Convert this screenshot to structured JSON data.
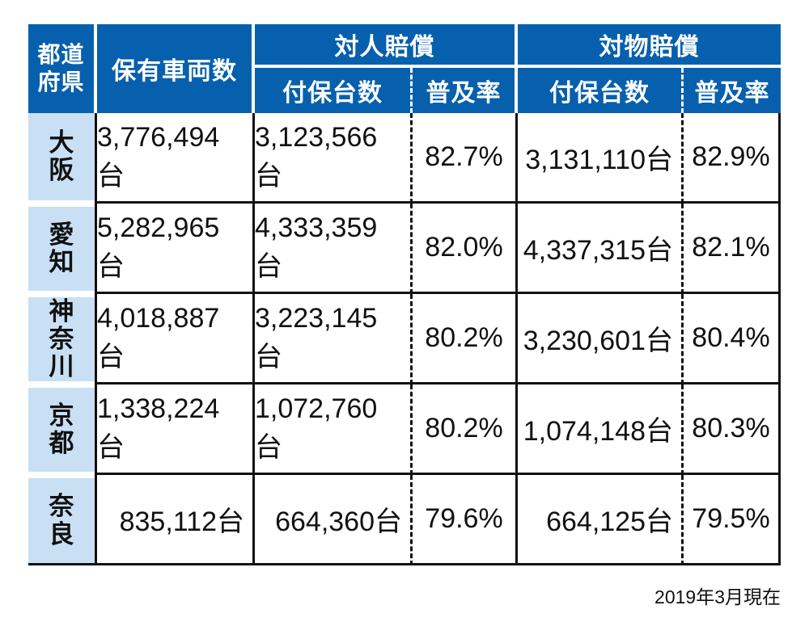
{
  "colors": {
    "header_blue": "#0660AD",
    "light_blue": "#C9E0F4"
  },
  "header": {
    "prefecture_lines": [
      "都道",
      "府県"
    ],
    "vehicles_owned": "保有車両数",
    "bodily_injury": "対人賠償",
    "property_damage": "対物賠償",
    "insured_units_bi": "付保台数",
    "penetration_rate_bi": "普及率",
    "insured_units_pd": "付保台数",
    "penetration_rate_pd": "普及率"
  },
  "rows": [
    {
      "pref": "大阪",
      "owned": "3,776,494台",
      "bi_insured": "3,123,566台",
      "bi_rate": "82.7%",
      "pd_insured": "3,131,110台",
      "pd_rate": "82.9%"
    },
    {
      "pref": "愛知",
      "owned": "5,282,965台",
      "bi_insured": "4,333,359台",
      "bi_rate": "82.0%",
      "pd_insured": "4,337,315台",
      "pd_rate": "82.1%"
    },
    {
      "pref": "神奈川",
      "owned": "4,018,887台",
      "bi_insured": "3,223,145台",
      "bi_rate": "80.2%",
      "pd_insured": "3,230,601台",
      "pd_rate": "80.4%"
    },
    {
      "pref": "京都",
      "owned": "1,338,224台",
      "bi_insured": "1,072,760台",
      "bi_rate": "80.2%",
      "pd_insured": "1,074,148台",
      "pd_rate": "80.3%"
    },
    {
      "pref": "奈良",
      "owned": "835,112台",
      "bi_insured": "664,360台",
      "bi_rate": "79.6%",
      "pd_insured": "664,125台",
      "pd_rate": "79.5%"
    }
  ],
  "footnote": "2019年3月現在",
  "chart_data": {
    "type": "table",
    "title": "",
    "columns": [
      "都道府県",
      "保有車両数",
      "対人賠償 付保台数",
      "対人賠償 普及率",
      "対物賠償 付保台数",
      "対物賠償 普及率"
    ],
    "rows": [
      [
        "大阪",
        3776494,
        3123566,
        82.7,
        3131110,
        82.9
      ],
      [
        "愛知",
        5282965,
        4333359,
        82.0,
        4337315,
        82.1
      ],
      [
        "神奈川",
        4018887,
        3223145,
        80.2,
        3230601,
        80.4
      ],
      [
        "京都",
        1338224,
        1072760,
        80.2,
        1074148,
        80.3
      ],
      [
        "奈良",
        835112,
        664360,
        79.6,
        664125,
        79.5
      ]
    ],
    "units": {
      "counts": "台",
      "rates": "%"
    },
    "footnote": "2019年3月現在"
  }
}
